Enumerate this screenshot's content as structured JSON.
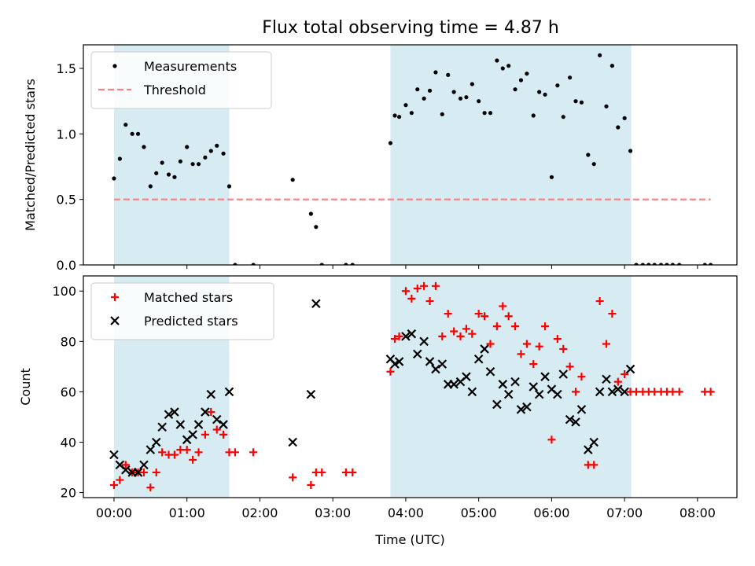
{
  "title": "Flux total observing time = 4.87 h",
  "colors": {
    "band": "#add8e6",
    "measurement": "#000000",
    "threshold": "#ff7f7f",
    "matched": "#ff0000",
    "predicted": "#000000"
  },
  "chart_data": [
    {
      "type": "scatter",
      "id": "ratio",
      "ylabel": "Matched/Predicted stars",
      "xlabel": "",
      "xlim": [
        -0.42,
        8.54
      ],
      "ylim": [
        0,
        1.68
      ],
      "yticks": [
        0,
        0.5,
        1.0,
        1.5
      ],
      "ytick_labels": [
        "0.0",
        "0.5",
        "1.0",
        "1.5"
      ],
      "legend_position": "top-left",
      "shaded_bands": [
        [
          0,
          1.58
        ],
        [
          3.79,
          7.09
        ]
      ],
      "threshold": {
        "name": "Threshold",
        "value": 0.5,
        "x_range": [
          0,
          8.18
        ]
      },
      "series": [
        {
          "name": "Measurements",
          "marker": "dot",
          "points": [
            [
              0.0,
              0.66
            ],
            [
              0.08,
              0.81
            ],
            [
              0.16,
              1.07
            ],
            [
              0.25,
              1.0
            ],
            [
              0.33,
              1.0
            ],
            [
              0.41,
              0.9
            ],
            [
              0.5,
              0.6
            ],
            [
              0.58,
              0.7
            ],
            [
              0.66,
              0.78
            ],
            [
              0.75,
              0.69
            ],
            [
              0.83,
              0.67
            ],
            [
              0.91,
              0.79
            ],
            [
              1.0,
              0.9
            ],
            [
              1.08,
              0.77
            ],
            [
              1.16,
              0.77
            ],
            [
              1.25,
              0.82
            ],
            [
              1.33,
              0.87
            ],
            [
              1.41,
              0.91
            ],
            [
              1.5,
              0.85
            ],
            [
              1.58,
              0.6
            ],
            [
              1.66,
              0.0
            ],
            [
              1.91,
              0.0
            ],
            [
              2.45,
              0.65
            ],
            [
              2.7,
              0.39
            ],
            [
              2.77,
              0.29
            ],
            [
              2.85,
              0.0
            ],
            [
              3.18,
              0.0
            ],
            [
              3.27,
              0.0
            ],
            [
              3.79,
              0.93
            ],
            [
              3.85,
              1.14
            ],
            [
              3.91,
              1.13
            ],
            [
              4.0,
              1.22
            ],
            [
              4.08,
              1.16
            ],
            [
              4.16,
              1.34
            ],
            [
              4.25,
              1.27
            ],
            [
              4.33,
              1.33
            ],
            [
              4.41,
              1.47
            ],
            [
              4.5,
              1.15
            ],
            [
              4.58,
              1.45
            ],
            [
              4.66,
              1.32
            ],
            [
              4.75,
              1.27
            ],
            [
              4.83,
              1.28
            ],
            [
              4.91,
              1.38
            ],
            [
              5.0,
              1.25
            ],
            [
              5.08,
              1.16
            ],
            [
              5.16,
              1.16
            ],
            [
              5.25,
              1.56
            ],
            [
              5.33,
              1.5
            ],
            [
              5.41,
              1.52
            ],
            [
              5.5,
              1.34
            ],
            [
              5.58,
              1.41
            ],
            [
              5.66,
              1.46
            ],
            [
              5.75,
              1.14
            ],
            [
              5.83,
              1.32
            ],
            [
              5.91,
              1.3
            ],
            [
              6.0,
              0.67
            ],
            [
              6.08,
              1.37
            ],
            [
              6.16,
              1.13
            ],
            [
              6.25,
              1.43
            ],
            [
              6.33,
              1.25
            ],
            [
              6.41,
              1.24
            ],
            [
              6.5,
              0.84
            ],
            [
              6.58,
              0.77
            ],
            [
              6.66,
              1.6
            ],
            [
              6.75,
              1.21
            ],
            [
              6.83,
              1.52
            ],
            [
              6.91,
              1.05
            ],
            [
              7.0,
              1.12
            ],
            [
              7.08,
              0.87
            ],
            [
              7.16,
              0.0
            ],
            [
              7.25,
              0.0
            ],
            [
              7.33,
              0.0
            ],
            [
              7.41,
              0.0
            ],
            [
              7.5,
              0.0
            ],
            [
              7.58,
              0.0
            ],
            [
              7.66,
              0.0
            ],
            [
              7.75,
              0.0
            ],
            [
              8.1,
              0.0
            ],
            [
              8.18,
              0.0
            ]
          ]
        }
      ]
    },
    {
      "type": "scatter",
      "id": "counts",
      "ylabel": "Count",
      "xlabel": "Time (UTC)",
      "xlim": [
        -0.42,
        8.54
      ],
      "ylim": [
        18,
        106
      ],
      "yticks": [
        20,
        40,
        60,
        80,
        100
      ],
      "ytick_labels": [
        "20",
        "40",
        "60",
        "80",
        "100"
      ],
      "xticks": [
        0,
        1,
        2,
        3,
        4,
        5,
        6,
        7,
        8
      ],
      "xtick_labels": [
        "00:00",
        "01:00",
        "02:00",
        "03:00",
        "04:00",
        "05:00",
        "06:00",
        "07:00",
        "08:00"
      ],
      "legend_position": "top-left",
      "shaded_bands": [
        [
          0,
          1.58
        ],
        [
          3.79,
          7.09
        ]
      ],
      "series": [
        {
          "name": "Matched stars",
          "marker": "plus",
          "points": [
            [
              0.0,
              23
            ],
            [
              0.08,
              25
            ],
            [
              0.16,
              31
            ],
            [
              0.25,
              28
            ],
            [
              0.33,
              28
            ],
            [
              0.41,
              28
            ],
            [
              0.5,
              22
            ],
            [
              0.58,
              28
            ],
            [
              0.66,
              36
            ],
            [
              0.75,
              35
            ],
            [
              0.83,
              35
            ],
            [
              0.91,
              37
            ],
            [
              1.0,
              37
            ],
            [
              1.08,
              33
            ],
            [
              1.16,
              36
            ],
            [
              1.25,
              43
            ],
            [
              1.33,
              52
            ],
            [
              1.41,
              45
            ],
            [
              1.5,
              43
            ],
            [
              1.58,
              36
            ],
            [
              1.66,
              36
            ],
            [
              1.91,
              36
            ],
            [
              2.45,
              26
            ],
            [
              2.7,
              23
            ],
            [
              2.77,
              28
            ],
            [
              2.85,
              28
            ],
            [
              3.18,
              28
            ],
            [
              3.27,
              28
            ],
            [
              3.79,
              68
            ],
            [
              3.85,
              81
            ],
            [
              3.91,
              82
            ],
            [
              4.0,
              100
            ],
            [
              4.08,
              97
            ],
            [
              4.16,
              101
            ],
            [
              4.25,
              102
            ],
            [
              4.33,
              96
            ],
            [
              4.41,
              102
            ],
            [
              4.5,
              82
            ],
            [
              4.58,
              91
            ],
            [
              4.66,
              84
            ],
            [
              4.75,
              82
            ],
            [
              4.83,
              85
            ],
            [
              4.91,
              83
            ],
            [
              5.0,
              91
            ],
            [
              5.08,
              90
            ],
            [
              5.16,
              79
            ],
            [
              5.25,
              86
            ],
            [
              5.33,
              94
            ],
            [
              5.41,
              90
            ],
            [
              5.5,
              86
            ],
            [
              5.58,
              75
            ],
            [
              5.66,
              79
            ],
            [
              5.75,
              71
            ],
            [
              5.83,
              78
            ],
            [
              5.91,
              86
            ],
            [
              6.0,
              41
            ],
            [
              6.08,
              81
            ],
            [
              6.16,
              77
            ],
            [
              6.25,
              70
            ],
            [
              6.33,
              60
            ],
            [
              6.41,
              66
            ],
            [
              6.5,
              31
            ],
            [
              6.58,
              31
            ],
            [
              6.66,
              96
            ],
            [
              6.75,
              79
            ],
            [
              6.83,
              91
            ],
            [
              6.91,
              64
            ],
            [
              7.0,
              67
            ],
            [
              7.08,
              60
            ],
            [
              7.16,
              60
            ],
            [
              7.25,
              60
            ],
            [
              7.33,
              60
            ],
            [
              7.41,
              60
            ],
            [
              7.5,
              60
            ],
            [
              7.58,
              60
            ],
            [
              7.66,
              60
            ],
            [
              7.75,
              60
            ],
            [
              8.1,
              60
            ],
            [
              8.18,
              60
            ]
          ]
        },
        {
          "name": "Predicted stars",
          "marker": "x",
          "points": [
            [
              0.0,
              35
            ],
            [
              0.08,
              31
            ],
            [
              0.16,
              29
            ],
            [
              0.25,
              28
            ],
            [
              0.33,
              28
            ],
            [
              0.41,
              31
            ],
            [
              0.5,
              37
            ],
            [
              0.58,
              40
            ],
            [
              0.66,
              46
            ],
            [
              0.75,
              51
            ],
            [
              0.83,
              52
            ],
            [
              0.91,
              47
            ],
            [
              1.0,
              41
            ],
            [
              1.08,
              43
            ],
            [
              1.16,
              47
            ],
            [
              1.25,
              52
            ],
            [
              1.33,
              59
            ],
            [
              1.41,
              49
            ],
            [
              1.5,
              47
            ],
            [
              1.58,
              60
            ],
            [
              2.45,
              40
            ],
            [
              2.7,
              59
            ],
            [
              2.77,
              95
            ],
            [
              3.79,
              73
            ],
            [
              3.85,
              71
            ],
            [
              3.91,
              72
            ],
            [
              4.0,
              82
            ],
            [
              4.08,
              83
            ],
            [
              4.16,
              75
            ],
            [
              4.25,
              80
            ],
            [
              4.33,
              72
            ],
            [
              4.41,
              69
            ],
            [
              4.5,
              71
            ],
            [
              4.58,
              63
            ],
            [
              4.66,
              63
            ],
            [
              4.75,
              64
            ],
            [
              4.83,
              66
            ],
            [
              4.91,
              60
            ],
            [
              5.0,
              73
            ],
            [
              5.08,
              77
            ],
            [
              5.16,
              68
            ],
            [
              5.25,
              55
            ],
            [
              5.33,
              63
            ],
            [
              5.41,
              59
            ],
            [
              5.5,
              64
            ],
            [
              5.58,
              53
            ],
            [
              5.66,
              54
            ],
            [
              5.75,
              62
            ],
            [
              5.83,
              59
            ],
            [
              5.91,
              66
            ],
            [
              6.0,
              61
            ],
            [
              6.08,
              59
            ],
            [
              6.16,
              67
            ],
            [
              6.25,
              49
            ],
            [
              6.33,
              48
            ],
            [
              6.41,
              53
            ],
            [
              6.5,
              37
            ],
            [
              6.58,
              40
            ],
            [
              6.66,
              60
            ],
            [
              6.75,
              65
            ],
            [
              6.83,
              60
            ],
            [
              6.91,
              61
            ],
            [
              7.0,
              60
            ],
            [
              7.08,
              69
            ]
          ]
        }
      ]
    }
  ]
}
